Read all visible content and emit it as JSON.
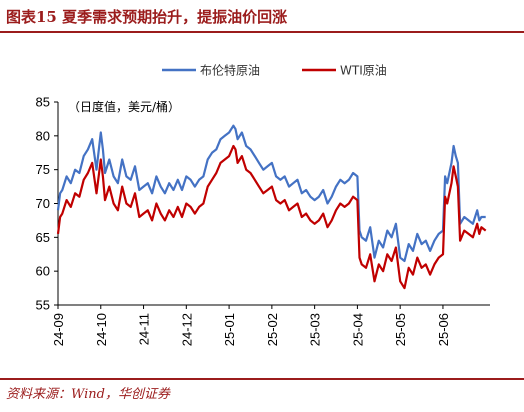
{
  "header": {
    "title": "图表15 夏季需求预期抬升，提振油价回涨"
  },
  "footer": {
    "source": "资料来源：Wind，华创证券"
  },
  "chart_data": {
    "type": "line",
    "ylabel": "（日度值，美元/桶）",
    "ylim": [
      55,
      85
    ],
    "yticks": [
      55,
      60,
      65,
      70,
      75,
      80,
      85
    ],
    "xticks": [
      "24-09",
      "24-10",
      "24-11",
      "24-12",
      "25-01",
      "25-02",
      "25-03",
      "25-04",
      "25-05",
      "25-06"
    ],
    "xlim": [
      0,
      10.1
    ],
    "legend_position": "top-center",
    "grid": false,
    "series": [
      {
        "name": "布伦特原油",
        "color": "#4472c4",
        "x": [
          0.0,
          0.05,
          0.1,
          0.2,
          0.3,
          0.4,
          0.5,
          0.6,
          0.7,
          0.8,
          0.9,
          1.0,
          1.05,
          1.1,
          1.2,
          1.3,
          1.4,
          1.5,
          1.6,
          1.7,
          1.8,
          1.9,
          2.0,
          2.1,
          2.2,
          2.3,
          2.4,
          2.5,
          2.6,
          2.7,
          2.8,
          2.9,
          3.0,
          3.1,
          3.2,
          3.3,
          3.4,
          3.5,
          3.6,
          3.7,
          3.8,
          3.9,
          4.0,
          4.1,
          4.15,
          4.2,
          4.3,
          4.4,
          4.5,
          4.6,
          4.7,
          4.8,
          4.9,
          5.0,
          5.1,
          5.2,
          5.3,
          5.4,
          5.5,
          5.6,
          5.7,
          5.8,
          5.9,
          6.0,
          6.1,
          6.2,
          6.3,
          6.4,
          6.5,
          6.6,
          6.7,
          6.8,
          6.9,
          7.0,
          7.05,
          7.1,
          7.2,
          7.3,
          7.4,
          7.5,
          7.6,
          7.7,
          7.8,
          7.9,
          8.0,
          8.1,
          8.2,
          8.3,
          8.4,
          8.5,
          8.6,
          8.7,
          8.8,
          8.9,
          9.0,
          9.05,
          9.1,
          9.2,
          9.25,
          9.3,
          9.35,
          9.4,
          9.5,
          9.6,
          9.7,
          9.8,
          9.85,
          9.9,
          10.0
        ],
        "values": [
          69.0,
          71.5,
          72.0,
          74.0,
          73.0,
          75.0,
          74.5,
          77.0,
          78.0,
          79.5,
          75.0,
          80.5,
          78.0,
          74.5,
          76.5,
          74.0,
          73.0,
          76.5,
          74.0,
          73.5,
          75.5,
          72.0,
          72.5,
          73.0,
          71.5,
          74.0,
          72.5,
          71.5,
          73.0,
          72.0,
          73.5,
          72.0,
          74.0,
          73.5,
          72.5,
          73.5,
          74.0,
          76.5,
          77.5,
          78.0,
          79.5,
          80.0,
          80.5,
          81.5,
          81.0,
          79.5,
          80.5,
          78.5,
          78.0,
          77.0,
          76.0,
          75.0,
          75.5,
          76.0,
          74.0,
          73.5,
          74.0,
          72.5,
          73.0,
          73.5,
          71.5,
          72.0,
          71.0,
          70.5,
          71.0,
          72.0,
          70.0,
          71.0,
          72.5,
          73.5,
          73.0,
          73.5,
          74.5,
          74.0,
          66.0,
          65.0,
          64.5,
          66.5,
          62.0,
          64.5,
          63.5,
          66.0,
          65.0,
          67.0,
          62.0,
          61.5,
          64.0,
          63.0,
          65.5,
          64.0,
          64.5,
          63.0,
          64.5,
          65.5,
          66.0,
          74.0,
          73.0,
          76.0,
          78.5,
          77.0,
          76.0,
          67.0,
          68.0,
          67.5,
          67.0,
          69.0,
          67.5,
          68.0,
          68.0
        ]
      },
      {
        "name": "WTI原油",
        "color": "#c00000",
        "x": [
          0.0,
          0.05,
          0.1,
          0.2,
          0.3,
          0.4,
          0.5,
          0.6,
          0.7,
          0.8,
          0.9,
          1.0,
          1.05,
          1.1,
          1.2,
          1.3,
          1.4,
          1.5,
          1.6,
          1.7,
          1.8,
          1.9,
          2.0,
          2.1,
          2.2,
          2.3,
          2.4,
          2.5,
          2.6,
          2.7,
          2.8,
          2.9,
          3.0,
          3.1,
          3.2,
          3.3,
          3.4,
          3.5,
          3.6,
          3.7,
          3.8,
          3.9,
          4.0,
          4.1,
          4.15,
          4.2,
          4.3,
          4.4,
          4.5,
          4.6,
          4.7,
          4.8,
          4.9,
          5.0,
          5.1,
          5.2,
          5.3,
          5.4,
          5.5,
          5.6,
          5.7,
          5.8,
          5.9,
          6.0,
          6.1,
          6.2,
          6.3,
          6.4,
          6.5,
          6.6,
          6.7,
          6.8,
          6.9,
          7.0,
          7.05,
          7.1,
          7.2,
          7.3,
          7.4,
          7.5,
          7.6,
          7.7,
          7.8,
          7.9,
          8.0,
          8.1,
          8.2,
          8.3,
          8.4,
          8.5,
          8.6,
          8.7,
          8.8,
          8.9,
          9.0,
          9.05,
          9.1,
          9.2,
          9.25,
          9.3,
          9.35,
          9.4,
          9.5,
          9.6,
          9.7,
          9.8,
          9.85,
          9.9,
          10.0
        ],
        "values": [
          65.5,
          68.0,
          68.5,
          70.5,
          69.5,
          71.5,
          71.0,
          73.5,
          74.5,
          76.0,
          71.5,
          76.5,
          74.0,
          70.5,
          72.5,
          70.0,
          69.0,
          72.5,
          70.0,
          69.5,
          71.5,
          68.0,
          68.5,
          69.0,
          67.5,
          70.0,
          68.5,
          67.5,
          69.0,
          68.0,
          69.5,
          68.0,
          70.0,
          69.5,
          68.5,
          69.5,
          70.0,
          72.5,
          73.5,
          74.5,
          76.0,
          76.5,
          77.0,
          78.5,
          78.0,
          76.0,
          77.0,
          75.0,
          74.5,
          73.5,
          72.5,
          71.5,
          72.0,
          72.5,
          70.5,
          70.0,
          70.5,
          69.0,
          69.5,
          70.0,
          68.0,
          68.5,
          67.5,
          67.0,
          67.5,
          68.5,
          66.5,
          67.5,
          69.0,
          70.0,
          69.5,
          70.0,
          71.0,
          70.5,
          62.0,
          61.0,
          60.5,
          62.5,
          58.5,
          61.0,
          60.0,
          62.5,
          61.5,
          63.5,
          58.5,
          57.5,
          60.5,
          59.5,
          62.0,
          60.5,
          61.0,
          59.5,
          61.0,
          62.0,
          62.5,
          71.0,
          70.0,
          73.0,
          75.5,
          74.0,
          72.5,
          64.5,
          66.0,
          65.5,
          65.0,
          67.0,
          65.5,
          66.5,
          66.0
        ]
      }
    ]
  }
}
